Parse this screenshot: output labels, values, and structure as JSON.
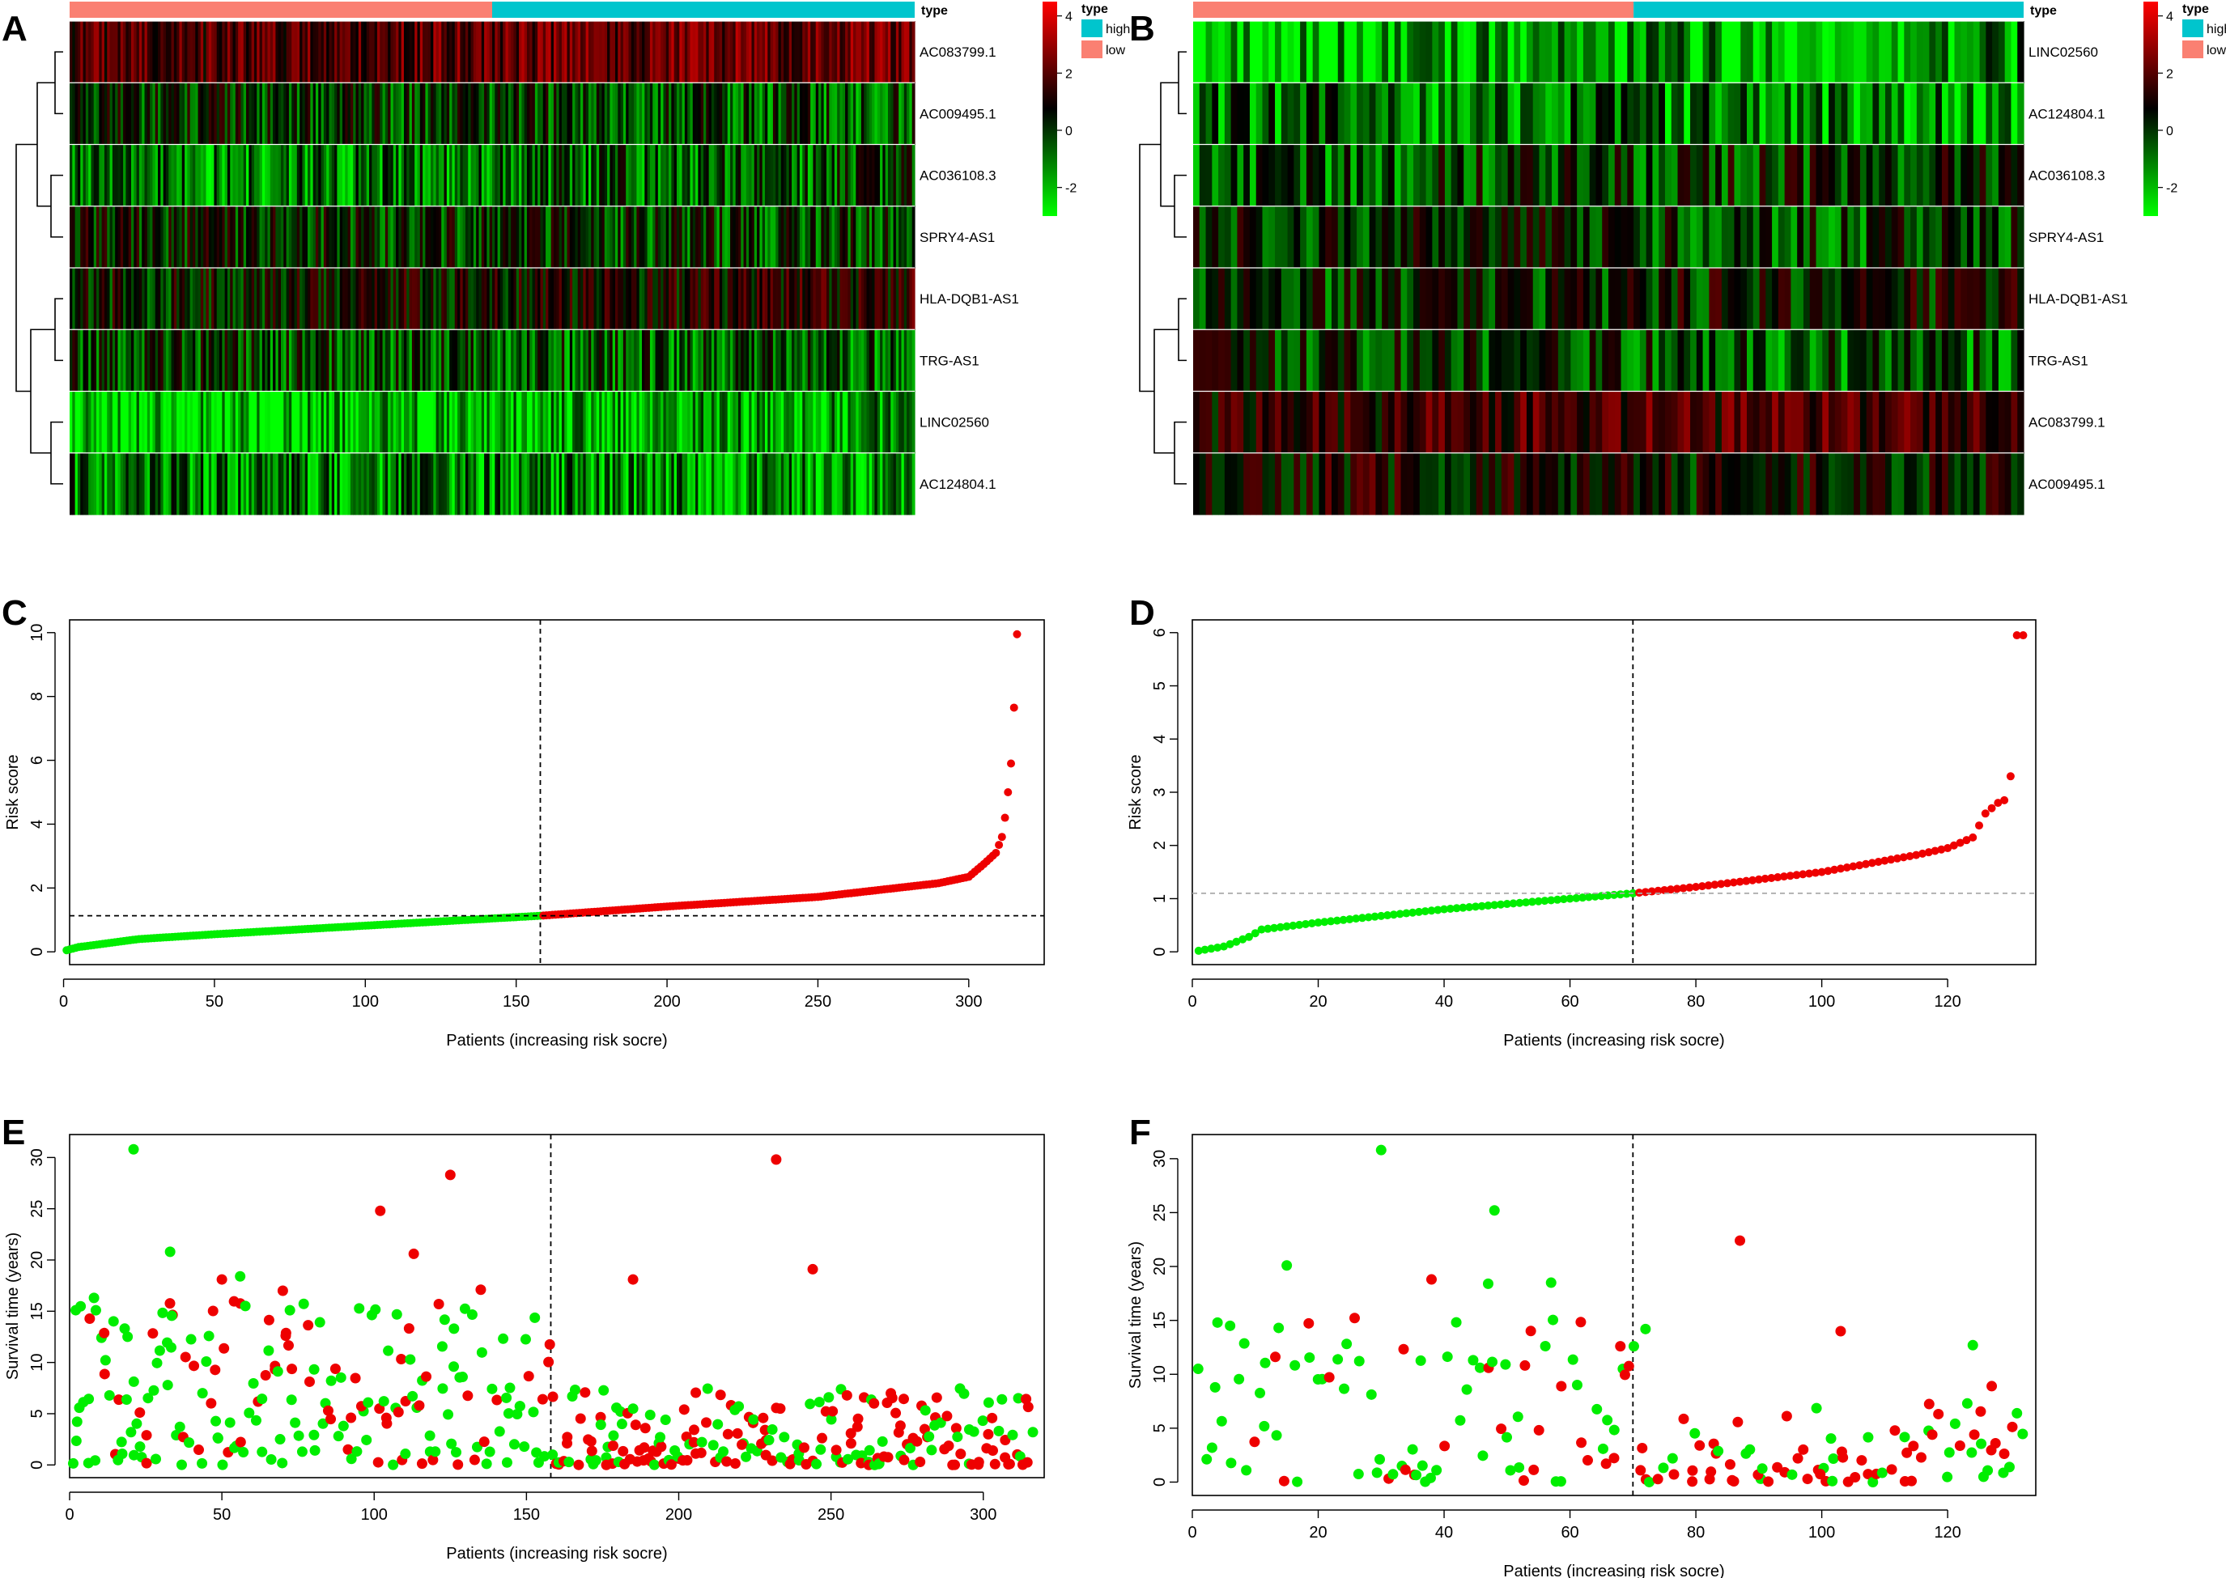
{
  "colors": {
    "low": "#FA8072",
    "high": "#00C5CD",
    "heat_low": "#00FF00",
    "heat_mid": "#000000",
    "heat_high": "#FF0000",
    "low_risk_point": "#00EE00",
    "high_risk_point": "#EE0000",
    "cutoff_line": "#000000"
  },
  "heatmaps": {
    "legend": {
      "type_title": "type",
      "groups": [
        "high",
        "low"
      ],
      "scale_ticks": [
        "4",
        "2",
        "0",
        "-2"
      ]
    },
    "A": {
      "label": "A",
      "n_low": 158,
      "n_high": 158,
      "genes": [
        "AC083799.1",
        "AC009495.1",
        "AC036108.3",
        "SPRY4-AS1",
        "HLA-DQB1-AS1",
        "TRG-AS1",
        "LINC02560",
        "AC124804.1"
      ]
    },
    "B": {
      "label": "B",
      "n_low": 70,
      "n_high": 62,
      "genes": [
        "LINC02560",
        "AC124804.1",
        "AC036108.3",
        "SPRY4-AS1",
        "HLA-DQB1-AS1",
        "TRG-AS1",
        "AC083799.1",
        "AC009495.1"
      ]
    }
  },
  "chart_data": [
    {
      "panel": "C",
      "type": "scatter",
      "xlabel": "Patients (increasing risk socre)",
      "ylabel": "Risk score",
      "xlim": [
        0,
        316
      ],
      "ylim": [
        0,
        10
      ],
      "xticks": [
        0,
        50,
        100,
        150,
        200,
        250,
        300
      ],
      "yticks": [
        0,
        2,
        4,
        6,
        8,
        10
      ],
      "n_patients": 316,
      "cutoff_index": 158,
      "cutoff_score": 1.13,
      "score_profile": [
        [
          1,
          0.05
        ],
        [
          5,
          0.15
        ],
        [
          25,
          0.4
        ],
        [
          50,
          0.55
        ],
        [
          100,
          0.82
        ],
        [
          158,
          1.13
        ],
        [
          200,
          1.42
        ],
        [
          250,
          1.72
        ],
        [
          290,
          2.15
        ],
        [
          300,
          2.35
        ],
        [
          305,
          2.75
        ],
        [
          309,
          3.1
        ],
        [
          311,
          3.6
        ],
        [
          312,
          4.2
        ],
        [
          313,
          5.0
        ],
        [
          314,
          5.9
        ],
        [
          315,
          7.65
        ],
        [
          316,
          9.95
        ]
      ],
      "series": [
        {
          "name": "low risk",
          "color_key": "low_risk_point"
        },
        {
          "name": "high risk",
          "color_key": "high_risk_point"
        }
      ]
    },
    {
      "panel": "D",
      "type": "scatter",
      "xlabel": "Patients (increasing risk socre)",
      "ylabel": "Risk score",
      "xlim": [
        0,
        132
      ],
      "ylim": [
        0,
        6
      ],
      "xticks": [
        0,
        20,
        40,
        60,
        80,
        100,
        120
      ],
      "yticks": [
        0,
        1,
        2,
        3,
        4,
        5,
        6
      ],
      "n_patients": 132,
      "cutoff_index": 70,
      "cutoff_score": 1.1,
      "score_profile": [
        [
          1,
          0.02
        ],
        [
          5,
          0.1
        ],
        [
          9,
          0.28
        ],
        [
          11,
          0.42
        ],
        [
          20,
          0.55
        ],
        [
          40,
          0.8
        ],
        [
          60,
          1.0
        ],
        [
          70,
          1.1
        ],
        [
          80,
          1.22
        ],
        [
          100,
          1.5
        ],
        [
          115,
          1.82
        ],
        [
          120,
          1.95
        ],
        [
          124,
          2.15
        ],
        [
          126,
          2.6
        ],
        [
          128,
          2.8
        ],
        [
          129,
          2.85
        ],
        [
          130,
          3.3
        ],
        [
          131,
          5.95
        ]
      ],
      "series": [
        {
          "name": "low risk",
          "color_key": "low_risk_point"
        },
        {
          "name": "high risk",
          "color_key": "high_risk_point"
        }
      ]
    },
    {
      "panel": "E",
      "type": "scatter",
      "xlabel": "Patients (increasing risk socre)",
      "ylabel": "Survival time (years)",
      "xlim": [
        0,
        316
      ],
      "ylim": [
        0,
        31
      ],
      "xticks": [
        0,
        50,
        100,
        150,
        200,
        250,
        300
      ],
      "yticks": [
        0,
        5,
        10,
        15,
        20,
        25,
        30
      ],
      "cutoff_index": 158,
      "highlights": [
        {
          "x": 21,
          "y": 30.8,
          "status": "alive"
        },
        {
          "x": 33,
          "y": 20.8,
          "status": "alive"
        },
        {
          "x": 56,
          "y": 18.4,
          "status": "alive"
        },
        {
          "x": 102,
          "y": 24.8,
          "status": "dead"
        },
        {
          "x": 113,
          "y": 20.6,
          "status": "dead"
        },
        {
          "x": 125,
          "y": 28.3,
          "status": "dead"
        },
        {
          "x": 135,
          "y": 17.1,
          "status": "dead"
        },
        {
          "x": 185,
          "y": 18.1,
          "status": "dead"
        },
        {
          "x": 232,
          "y": 29.8,
          "status": "dead"
        },
        {
          "x": 244,
          "y": 19.1,
          "status": "dead"
        },
        {
          "x": 50,
          "y": 18.1,
          "status": "dead"
        },
        {
          "x": 2,
          "y": 15.1,
          "status": "alive"
        },
        {
          "x": 8,
          "y": 16.3,
          "status": "alive"
        },
        {
          "x": 70,
          "y": 17.0,
          "status": "dead"
        }
      ]
    },
    {
      "panel": "F",
      "type": "scatter",
      "xlabel": "Patients (increasing risk socre)",
      "ylabel": "Survival time (years)",
      "xlim": [
        0,
        132
      ],
      "ylim": [
        0,
        31
      ],
      "xticks": [
        0,
        20,
        40,
        60,
        80,
        100,
        120
      ],
      "yticks": [
        0,
        5,
        10,
        15,
        20,
        25,
        30
      ],
      "cutoff_index": 70,
      "highlights": [
        {
          "x": 30,
          "y": 30.8,
          "status": "alive"
        },
        {
          "x": 48,
          "y": 25.2,
          "status": "alive"
        },
        {
          "x": 87,
          "y": 22.4,
          "status": "dead"
        },
        {
          "x": 15,
          "y": 20.1,
          "status": "alive"
        },
        {
          "x": 38,
          "y": 18.8,
          "status": "dead"
        },
        {
          "x": 47,
          "y": 18.4,
          "status": "alive"
        },
        {
          "x": 57,
          "y": 18.5,
          "status": "alive"
        },
        {
          "x": 103,
          "y": 14.0,
          "status": "dead"
        },
        {
          "x": 124,
          "y": 12.7,
          "status": "alive"
        },
        {
          "x": 68,
          "y": 12.6,
          "status": "dead"
        },
        {
          "x": 72,
          "y": 14.2,
          "status": "alive"
        },
        {
          "x": 4,
          "y": 14.8,
          "status": "alive"
        },
        {
          "x": 6,
          "y": 14.5,
          "status": "alive"
        },
        {
          "x": 127,
          "y": 8.9,
          "status": "dead"
        }
      ]
    }
  ]
}
